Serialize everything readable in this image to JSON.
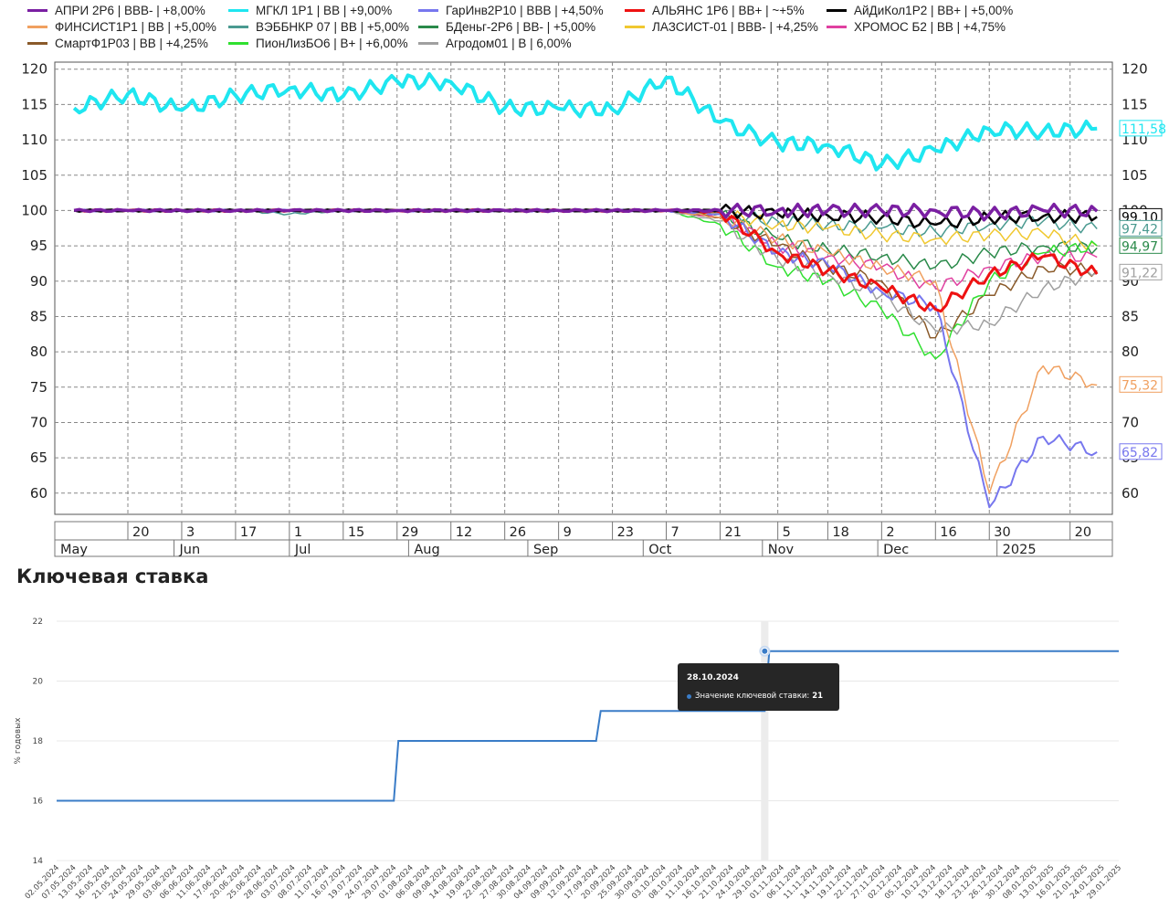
{
  "legend": [
    {
      "name": "АПРИ 2Р6 | BBB- | +8,00%",
      "color": "#7a1fa2"
    },
    {
      "name": "МГКЛ 1Р1 | BB | +9,00%",
      "color": "#1fe6f0"
    },
    {
      "name": "ГарИнв2Р10 | BBB | +4,50%",
      "color": "#7777ee"
    },
    {
      "name": "АЛЬЯНС 1Р6 | BB+ | ~+5%",
      "color": "#ee1111"
    },
    {
      "name": "АйДиКол1Р2 | BB+ | +5,00%",
      "color": "#000000"
    },
    {
      "name": "ФИНСИСТ1Р1 | BB | +5,00%",
      "color": "#f0a060"
    },
    {
      "name": "ВЭББНКР 07 | BB | +5,00%",
      "color": "#4a9a90"
    },
    {
      "name": "БДеньг-2Р6 | BB- | +5,00%",
      "color": "#2a8a4a"
    },
    {
      "name": "ЛАЗСИСТ-01 | BBB- | +4,25%",
      "color": "#f0c830"
    },
    {
      "name": "ХРОМОС Б2 | BB | +4,75%",
      "color": "#e040a0"
    },
    {
      "name": "СмартФ1Р03 | BB | +4,25%",
      "color": "#8a5a2a"
    },
    {
      "name": "ПионЛизБО6 | B+ | +6,00%",
      "color": "#30e030"
    },
    {
      "name": "Агродом01 | B | 6,00%",
      "color": "#a0a0a0"
    }
  ],
  "bond_chart": {
    "y_ticks": [
      "120",
      "115",
      "110",
      "105",
      "100",
      "95",
      "90",
      "85",
      "80",
      "75",
      "70",
      "65",
      "60"
    ],
    "x_day_ticks": [
      "20",
      "3",
      "17",
      "1",
      "15",
      "29",
      "12",
      "26",
      "9",
      "23",
      "7",
      "21",
      "5",
      "18",
      "2",
      "16",
      "30",
      "20"
    ],
    "x_month_ticks": [
      "May",
      "Jun",
      "Jul",
      "Aug",
      "Sep",
      "Oct",
      "Nov",
      "Dec",
      "2025"
    ],
    "last_labels": [
      "111,58",
      "99,10",
      "97,42",
      "94,97",
      "91,22",
      "75,32",
      "65,82"
    ]
  },
  "rate_title": "Ключевая ставка",
  "chart_data": [
    {
      "type": "line",
      "x": [
        "2024-05-06",
        "2024-05-20",
        "2024-06-03",
        "2024-06-17",
        "2024-07-01",
        "2024-07-15",
        "2024-07-29",
        "2024-08-12",
        "2024-08-26",
        "2024-09-09",
        "2024-09-23",
        "2024-10-07",
        "2024-10-21",
        "2024-11-05",
        "2024-11-18",
        "2024-12-02",
        "2024-12-16",
        "2024-12-30",
        "2025-01-13",
        "2025-01-27"
      ],
      "y_range": [
        57,
        121
      ],
      "series": [
        {
          "name": "АПРИ 2Р6 | BBB- | +8,00%",
          "values": [
            100,
            100,
            100,
            100,
            100,
            100,
            100,
            100,
            100,
            100,
            100,
            100,
            100,
            100,
            100,
            100,
            100,
            99.5,
            100,
            99.9
          ]
        },
        {
          "name": "МГКЛ 1Р1 | BB | +9,00%",
          "values": [
            114.5,
            116.5,
            114.2,
            116.3,
            117.3,
            116.2,
            118.3,
            118.2,
            114.5,
            114.4,
            114.3,
            118.8,
            112.5,
            109.5,
            109.3,
            106.5,
            108.5,
            111.5,
            111.2,
            111.6
          ]
        },
        {
          "name": "ГарИнв2Р10 | BBB | +4,50%",
          "values": [
            100,
            100,
            100,
            100,
            100,
            100,
            100,
            100,
            100,
            100,
            100,
            100,
            99.5,
            94,
            92.3,
            88.5,
            86.5,
            58,
            68,
            65.8
          ]
        },
        {
          "name": "АЛЬЯНС 1Р6 | BB+ | ~+5%",
          "values": [
            100,
            100,
            100,
            100,
            100,
            100,
            100,
            100,
            100,
            100,
            100,
            100,
            99.8,
            94,
            91.5,
            89,
            86,
            91,
            93.5,
            91
          ]
        },
        {
          "name": "АйДиКол1Р2 | BB+ | +5,00%",
          "values": [
            100,
            100,
            100,
            100,
            100,
            100,
            100,
            100,
            100,
            100,
            100,
            100,
            100,
            99.5,
            99.3,
            99,
            98,
            99,
            99.2,
            99.1
          ]
        },
        {
          "name": "ФИНСИСТ1Р1 | BB | +5,00%",
          "values": [
            100,
            100,
            100,
            100,
            100,
            100,
            100,
            100,
            100,
            100,
            100,
            100,
            99,
            96,
            94,
            92,
            90,
            60,
            78,
            75.3
          ]
        },
        {
          "name": "ВЭББНКР 07 | BB | +5,00%",
          "values": [
            100,
            100,
            100,
            100,
            99.5,
            100,
            100,
            100,
            100,
            100,
            100,
            100,
            99.5,
            98.5,
            98,
            97.5,
            97,
            98,
            98.5,
            97.4
          ]
        },
        {
          "name": "БДеньг-2Р6 | BB- | +5,00%",
          "values": [
            100,
            100,
            100,
            100,
            100,
            100,
            100,
            100,
            100,
            100,
            100,
            100,
            99.5,
            96,
            94.5,
            93.5,
            92,
            94,
            95,
            94.7
          ]
        },
        {
          "name": "ЛАЗСИСТ-01 | BBB- | +4,25%",
          "values": [
            100,
            100,
            100,
            100,
            100,
            100,
            100,
            100,
            100,
            100,
            100,
            100,
            99.5,
            98,
            97.5,
            96.5,
            96,
            96.5,
            96.8,
            95
          ]
        },
        {
          "name": "ХРОМОС Б2 | BB | +4,75%",
          "values": [
            100,
            100,
            100,
            100,
            100,
            100,
            100,
            100,
            100,
            100,
            100,
            100,
            99,
            95,
            93.5,
            92,
            89,
            92,
            93.5,
            93.4
          ]
        },
        {
          "name": "СмартФ1Р03 | BB | +4,25%",
          "values": [
            100,
            100,
            100,
            100,
            100,
            100,
            100,
            100,
            100,
            100,
            100,
            100,
            99,
            95,
            92,
            90,
            82,
            88,
            92,
            91.5
          ]
        },
        {
          "name": "ПионЛизБО6 | B+ | +6,00%",
          "values": [
            100,
            100,
            100,
            100,
            100,
            100,
            100,
            100,
            100,
            100,
            100,
            100,
            98,
            92,
            90,
            86,
            79,
            90,
            94,
            95
          ]
        },
        {
          "name": "Агродом01 | B | 6,00%",
          "values": [
            100,
            100,
            100,
            100,
            100,
            100,
            100,
            100,
            100,
            100,
            100,
            100,
            98.5,
            93,
            91,
            88,
            83,
            84,
            89,
            91.2
          ]
        }
      ]
    },
    {
      "type": "line",
      "title": "Ключевая ставка",
      "ylabel": "% годовых",
      "ylim": [
        14,
        22
      ],
      "y_ticks": [
        14,
        16,
        18,
        20,
        22
      ],
      "x": [
        "02.05.2024",
        "07.05.2024",
        "13.05.2024",
        "16.05.2024",
        "21.05.2024",
        "24.05.2024",
        "29.05.2024",
        "03.06.2024",
        "06.06.2024",
        "11.06.2024",
        "17.06.2024",
        "20.06.2024",
        "25.06.2024",
        "28.06.2024",
        "03.07.2024",
        "08.07.2024",
        "11.07.2024",
        "16.07.2024",
        "19.07.2024",
        "24.07.2024",
        "29.07.2024",
        "01.08.2024",
        "06.08.2024",
        "09.08.2024",
        "14.08.2024",
        "19.08.2024",
        "22.08.2024",
        "27.08.2024",
        "30.08.2024",
        "04.09.2024",
        "09.09.2024",
        "12.09.2024",
        "17.09.2024",
        "20.09.2024",
        "25.09.2024",
        "30.09.2024",
        "03.10.2024",
        "08.10.2024",
        "11.10.2024",
        "16.10.2024",
        "21.10.2024",
        "24.10.2024",
        "29.10.2024",
        "01.11.2024",
        "06.11.2024",
        "11.11.2024",
        "14.11.2024",
        "19.11.2024",
        "22.11.2024",
        "27.11.2024",
        "02.12.2024",
        "05.12.2024",
        "10.12.2024",
        "13.12.2024",
        "18.12.2024",
        "23.12.2024",
        "26.12.2024",
        "30.12.2024",
        "08.01.2025",
        "13.01.2025",
        "16.01.2025",
        "21.01.2025",
        "24.01.2025",
        "29.01.2025"
      ],
      "values": [
        16,
        16,
        16,
        16,
        16,
        16,
        16,
        16,
        16,
        16,
        16,
        16,
        16,
        16,
        16,
        16,
        16,
        16,
        16,
        16,
        18,
        18,
        18,
        18,
        18,
        18,
        18,
        18,
        18,
        18,
        18,
        18,
        19,
        19,
        19,
        19,
        19,
        19,
        19,
        19,
        19,
        19,
        21,
        21,
        21,
        21,
        21,
        21,
        21,
        21,
        21,
        21,
        21,
        21,
        21,
        21,
        21,
        21,
        21,
        21,
        21,
        21,
        21,
        21
      ],
      "tooltip": {
        "date": "28.10.2024",
        "label": "Значение ключевой ставки:",
        "value": "21"
      }
    }
  ]
}
